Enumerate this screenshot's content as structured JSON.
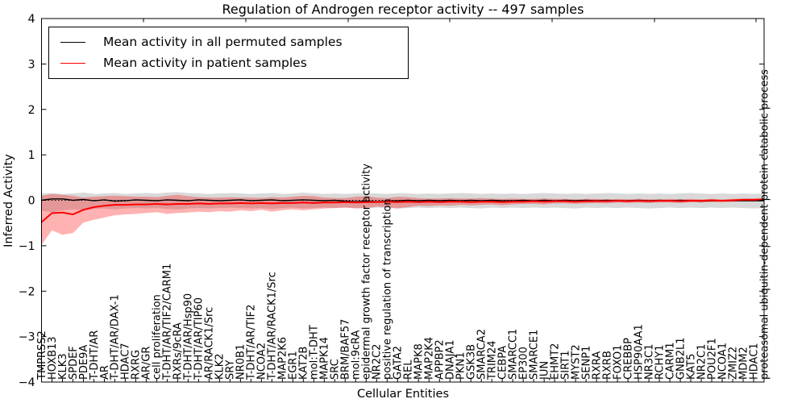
{
  "title": "Regulation of Androgen receptor activity -- 497 samples",
  "legend": {
    "entries": [
      {
        "label": "Mean activity in all permuted samples",
        "color": "#000000"
      },
      {
        "label": "Mean activity in patient samples",
        "color": "#ff0000"
      }
    ]
  },
  "colors": {
    "patient_line": "#ff0000",
    "permuted_line": "#000000",
    "patient_band": "rgba(255,0,0,0.30)",
    "permuted_band": "rgba(0,0,0,0.15)",
    "frame": "#000000",
    "zero_line": "#000000"
  },
  "chart_data": {
    "type": "line",
    "title": "Regulation of Androgen receptor activity -- 497 samples",
    "xlabel": "Cellular Entities",
    "ylabel": "Inferred Activity",
    "ylim": [
      -4,
      4
    ],
    "y_tick_values": [
      4,
      3,
      2,
      1,
      0,
      -1,
      -2,
      -3,
      -4
    ],
    "y_tick_labels": [
      "4",
      "3",
      "2",
      "1",
      "0",
      "−1",
      "−2",
      "−3",
      "−4"
    ],
    "grid": false,
    "legend_position": "upper left",
    "zero_line": {
      "y": 0,
      "style": "dotted"
    },
    "categories": [
      "TMPRSS2",
      "HOXB13",
      "KLK3",
      "SPDEF",
      "PDE9A",
      "T-DHT/AR",
      "AR",
      "T-DHT/AR/DAX-1",
      "HDAC7",
      "RXRG",
      "AR/GR",
      "cell proliferation",
      "T-DHT/AR/TIF2/CARM1",
      "RXRs/9cRA",
      "T-DHT/AR/Hsp90",
      "T-DHT/AR/TIP60",
      "AR/RACK1/Src",
      "KLK2",
      "SRY",
      "NR0B1",
      "T-DHT/AR/TIF2",
      "NCOA2",
      "T-DHT/AR/RACK1/Src",
      "MAP2K6",
      "EGR1",
      "KAT2B",
      "mol:T-DHT",
      "MAPK14",
      "SRC",
      "BRM/BAF57",
      "mol:9cRA",
      "epidermal growth factor receptor activity",
      "NR2C2",
      "positive regulation of transcription",
      "GATA2",
      "REL",
      "MAPK8",
      "MAP2K4",
      "APPBP2",
      "DNAJA1",
      "PKN1",
      "GSK3B",
      "SMARCA2",
      "TRIM24",
      "CEBPA",
      "SMARCC1",
      "EP300",
      "SMARCE1",
      "JUN",
      "EHMT2",
      "SIRT1",
      "MYST2",
      "SENP1",
      "RXRA",
      "RXRB",
      "FOXO1",
      "CREBBP",
      "HSP90AA1",
      "NR3C1",
      "RCHY1",
      "CARM1",
      "GNB2L1",
      "KAT5",
      "NR2C1",
      "POU2F1",
      "NCOA1",
      "ZMIZ2",
      "MDM2",
      "HDAC1",
      "proteasomal ubiquitin-dependent protein catabolic process"
    ],
    "series": [
      {
        "name": "Mean activity in all permuted samples",
        "color": "#000000",
        "band_color": "rgba(0,0,0,0.15)",
        "values": [
          0.0,
          0.03,
          0.03,
          0.0,
          0.02,
          -0.01,
          0.01,
          -0.02,
          -0.01,
          0.01,
          0.0,
          -0.01,
          0.01,
          0.0,
          -0.01,
          0.01,
          0.0,
          -0.01,
          0.0,
          0.01,
          -0.01,
          0.0,
          0.01,
          -0.01,
          0.0,
          0.01,
          0.0,
          -0.01,
          0.0,
          -0.02,
          -0.03,
          -0.02,
          -0.03,
          -0.02,
          -0.01,
          0.0,
          -0.01,
          0.0,
          -0.01,
          0.0,
          -0.01,
          0.0,
          -0.01,
          0.0,
          -0.01,
          -0.01,
          0.0,
          -0.01,
          0.0,
          -0.01,
          0.0,
          -0.01,
          0.0,
          -0.01,
          0.0,
          -0.01,
          -0.01,
          0.0,
          -0.01,
          0.0,
          -0.01,
          0.0,
          -0.01,
          -0.02,
          -0.01,
          -0.01,
          -0.01,
          -0.01,
          -0.01,
          -0.01
        ],
        "band_upper": [
          0.15,
          0.16,
          0.14,
          0.15,
          0.17,
          0.14,
          0.15,
          0.16,
          0.14,
          0.15,
          0.16,
          0.15,
          0.17,
          0.18,
          0.16,
          0.15,
          0.14,
          0.15,
          0.16,
          0.15,
          0.14,
          0.15,
          0.16,
          0.14,
          0.15,
          0.17,
          0.15,
          0.14,
          0.15,
          0.14,
          0.15,
          0.16,
          0.15,
          0.14,
          0.16,
          0.15,
          0.14,
          0.15,
          0.14,
          0.15,
          0.16,
          0.15,
          0.14,
          0.15,
          0.14,
          0.15,
          0.14,
          0.15,
          0.16,
          0.15,
          0.14,
          0.15,
          0.14,
          0.15,
          0.16,
          0.15,
          0.14,
          0.15,
          0.14,
          0.15,
          0.14,
          0.15,
          0.16,
          0.15,
          0.14,
          0.15,
          0.14,
          0.15,
          0.14,
          0.15
        ],
        "band_lower": [
          -0.23,
          -0.26,
          -0.22,
          -0.2,
          -0.22,
          -0.19,
          -0.18,
          -0.2,
          -0.18,
          -0.17,
          -0.18,
          -0.17,
          -0.19,
          -0.2,
          -0.18,
          -0.17,
          -0.18,
          -0.17,
          -0.16,
          -0.17,
          -0.18,
          -0.17,
          -0.19,
          -0.17,
          -0.16,
          -0.18,
          -0.17,
          -0.16,
          -0.17,
          -0.16,
          -0.17,
          -0.18,
          -0.16,
          -0.17,
          -0.18,
          -0.17,
          -0.16,
          -0.17,
          -0.16,
          -0.17,
          -0.16,
          -0.17,
          -0.18,
          -0.16,
          -0.17,
          -0.16,
          -0.17,
          -0.16,
          -0.17,
          -0.16,
          -0.17,
          -0.18,
          -0.16,
          -0.17,
          -0.16,
          -0.17,
          -0.16,
          -0.17,
          -0.18,
          -0.17,
          -0.16,
          -0.17,
          -0.16,
          -0.17,
          -0.16,
          -0.17,
          -0.16,
          -0.17,
          -0.18,
          -0.17
        ]
      },
      {
        "name": "Mean activity in patient samples",
        "color": "#ff0000",
        "band_color": "rgba(255,0,0,0.30)",
        "values": [
          -0.48,
          -0.28,
          -0.27,
          -0.31,
          -0.21,
          -0.15,
          -0.12,
          -0.1,
          -0.1,
          -0.09,
          -0.09,
          -0.08,
          -0.09,
          -0.08,
          -0.08,
          -0.07,
          -0.08,
          -0.07,
          -0.07,
          -0.06,
          -0.07,
          -0.06,
          -0.07,
          -0.06,
          -0.06,
          -0.05,
          -0.06,
          -0.05,
          -0.05,
          -0.04,
          -0.05,
          -0.04,
          -0.04,
          -0.03,
          -0.04,
          -0.03,
          -0.04,
          -0.03,
          -0.04,
          -0.03,
          -0.03,
          -0.04,
          -0.03,
          -0.03,
          -0.04,
          -0.03,
          -0.03,
          -0.02,
          -0.03,
          -0.02,
          -0.02,
          -0.03,
          -0.02,
          -0.02,
          -0.02,
          -0.01,
          -0.02,
          -0.01,
          -0.02,
          -0.01,
          -0.01,
          -0.02,
          -0.01,
          -0.01,
          0.0,
          -0.01,
          0.0,
          0.01,
          0.01,
          0.02
        ],
        "band_upper": [
          0.1,
          0.14,
          0.12,
          0.1,
          0.06,
          0.08,
          0.09,
          0.1,
          0.09,
          0.08,
          0.08,
          0.07,
          0.1,
          0.12,
          0.09,
          0.07,
          0.06,
          0.06,
          0.07,
          0.06,
          0.06,
          0.05,
          0.07,
          0.06,
          0.08,
          0.1,
          0.09,
          0.06,
          0.05,
          0.05,
          0.08,
          0.09,
          0.06,
          0.05,
          0.08,
          0.07,
          0.05,
          0.04,
          0.04,
          0.05,
          0.04,
          0.04,
          0.05,
          0.04,
          0.03,
          0.04,
          0.03,
          0.03,
          0.04,
          0.03,
          0.03,
          0.02,
          0.03,
          0.03,
          0.02,
          0.03,
          0.02,
          0.03,
          0.02,
          0.02,
          0.03,
          0.02,
          0.03,
          0.02,
          0.03,
          0.02,
          0.03,
          0.04,
          0.04,
          0.05
        ],
        "band_lower": [
          -0.98,
          -0.66,
          -0.76,
          -0.72,
          -0.49,
          -0.43,
          -0.38,
          -0.33,
          -0.31,
          -0.3,
          -0.28,
          -0.26,
          -0.3,
          -0.28,
          -0.27,
          -0.25,
          -0.26,
          -0.24,
          -0.25,
          -0.22,
          -0.24,
          -0.21,
          -0.25,
          -0.22,
          -0.2,
          -0.22,
          -0.2,
          -0.18,
          -0.17,
          -0.16,
          -0.18,
          -0.17,
          -0.14,
          -0.15,
          -0.18,
          -0.15,
          -0.12,
          -0.13,
          -0.11,
          -0.12,
          -0.1,
          -0.11,
          -0.1,
          -0.09,
          -0.11,
          -0.09,
          -0.08,
          -0.08,
          -0.09,
          -0.07,
          -0.07,
          -0.08,
          -0.07,
          -0.06,
          -0.07,
          -0.05,
          -0.06,
          -0.05,
          -0.06,
          -0.05,
          -0.05,
          -0.06,
          -0.04,
          -0.05,
          -0.04,
          -0.04,
          -0.03,
          -0.02,
          -0.02,
          -0.02
        ]
      }
    ]
  }
}
